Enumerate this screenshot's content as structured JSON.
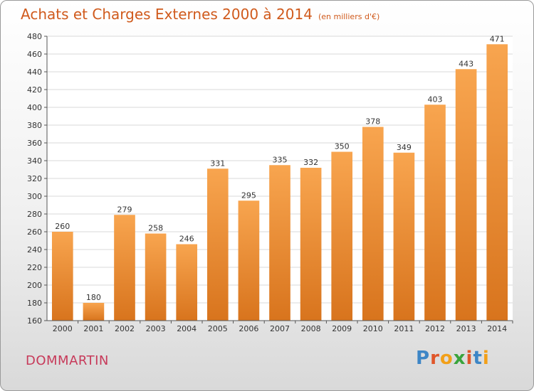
{
  "title": "Achats et Charges Externes 2000 à 2014",
  "subtitle": "(en milliers d'€)",
  "commune": "DOMMARTIN",
  "logo": {
    "letters": [
      "P",
      "r",
      "o",
      "x",
      "i",
      "t",
      "i"
    ],
    "colors": [
      "#3d86c6",
      "#e0562a",
      "#f2a019",
      "#3aa43c",
      "#e0562a",
      "#3d86c6",
      "#f2a019"
    ]
  },
  "colors": {
    "bar_light": "#f8a54f",
    "bar_dark": "#d8741d",
    "title": "#d05a1c"
  },
  "chart_data": {
    "type": "bar",
    "categories": [
      "2000",
      "2001",
      "2002",
      "2003",
      "2004",
      "2005",
      "2006",
      "2007",
      "2008",
      "2009",
      "2010",
      "2011",
      "2012",
      "2013",
      "2014"
    ],
    "values": [
      260,
      180,
      279,
      258,
      246,
      331,
      295,
      335,
      332,
      350,
      378,
      349,
      403,
      443,
      471
    ],
    "ylim": [
      160,
      480
    ],
    "yticks": [
      160,
      180,
      200,
      220,
      240,
      260,
      280,
      300,
      320,
      340,
      360,
      380,
      400,
      420,
      440,
      460,
      480
    ],
    "grid": true,
    "data_labels": true
  }
}
